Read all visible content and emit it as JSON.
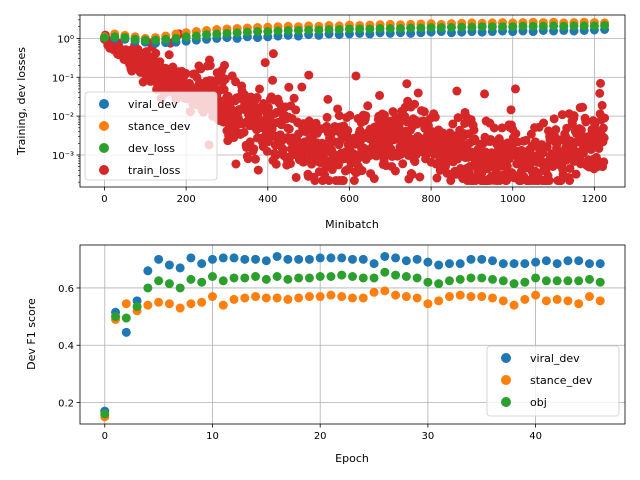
{
  "chart_data": [
    {
      "type": "scatter",
      "xlabel": "Minibatch",
      "ylabel": "Training, dev losses",
      "xlim": [
        -60,
        1275
      ],
      "yscale": "log",
      "ylim": [
        0.00015,
        4.0
      ],
      "x_ticks": [
        0,
        200,
        400,
        600,
        800,
        1000,
        1200
      ],
      "y_ticks": [
        {
          "value": 0.001,
          "label": "10⁻³"
        },
        {
          "value": 0.01,
          "label": "10⁻²"
        },
        {
          "value": 0.1,
          "label": "10⁻¹"
        },
        {
          "value": 1,
          "label": "10⁰"
        }
      ],
      "grid": true,
      "legend": "lower-left",
      "series": [
        {
          "name": "viral_dev",
          "color": "#1f77b4",
          "x": [
            0,
            25,
            50,
            75,
            100,
            125,
            150,
            175,
            200,
            225,
            250,
            275,
            300,
            325,
            350,
            375,
            400,
            425,
            450,
            475,
            500,
            525,
            550,
            575,
            600,
            625,
            650,
            675,
            700,
            725,
            750,
            775,
            800,
            825,
            850,
            875,
            900,
            925,
            950,
            975,
            1000,
            1025,
            1050,
            1075,
            1100,
            1125,
            1150,
            1175,
            1200,
            1225
          ],
          "y": [
            1.05,
            1.0,
            0.95,
            0.85,
            0.8,
            0.75,
            0.78,
            0.8,
            0.85,
            0.9,
            0.95,
            1.0,
            1.05,
            1.0,
            1.1,
            1.05,
            1.1,
            1.15,
            1.2,
            1.15,
            1.25,
            1.2,
            1.3,
            1.25,
            1.3,
            1.35,
            1.3,
            1.4,
            1.35,
            1.4,
            1.35,
            1.4,
            1.45,
            1.5,
            1.4,
            1.45,
            1.5,
            1.45,
            1.5,
            1.55,
            1.5,
            1.55,
            1.5,
            1.6,
            1.55,
            1.6,
            1.55,
            1.6,
            1.65,
            1.7
          ]
        },
        {
          "name": "stance_dev",
          "color": "#ff7f0e",
          "x": [
            0,
            25,
            50,
            75,
            100,
            125,
            150,
            175,
            200,
            225,
            250,
            275,
            300,
            325,
            350,
            375,
            400,
            425,
            450,
            475,
            500,
            525,
            550,
            575,
            600,
            625,
            650,
            675,
            700,
            725,
            750,
            775,
            800,
            825,
            850,
            875,
            900,
            925,
            950,
            975,
            1000,
            1025,
            1050,
            1075,
            1100,
            1125,
            1150,
            1175,
            1200,
            1225
          ],
          "y": [
            1.1,
            1.3,
            1.2,
            1.1,
            1.0,
            1.05,
            1.15,
            1.3,
            1.4,
            1.5,
            1.6,
            1.7,
            1.75,
            1.8,
            1.85,
            1.9,
            1.95,
            2.0,
            2.05,
            2.0,
            2.1,
            2.05,
            2.15,
            2.1,
            2.2,
            2.15,
            2.2,
            2.25,
            2.3,
            2.25,
            2.3,
            2.35,
            2.4,
            2.3,
            2.4,
            2.45,
            2.5,
            2.45,
            2.5,
            2.55,
            2.5,
            2.55,
            2.6,
            2.55,
            2.6,
            2.5,
            2.55,
            2.6,
            2.55,
            2.5
          ]
        },
        {
          "name": "dev_loss",
          "color": "#2ca02c",
          "x": [
            0,
            25,
            50,
            75,
            100,
            125,
            150,
            175,
            200,
            225,
            250,
            275,
            300,
            325,
            350,
            375,
            400,
            425,
            450,
            475,
            500,
            525,
            550,
            575,
            600,
            625,
            650,
            675,
            700,
            725,
            750,
            775,
            800,
            825,
            850,
            875,
            900,
            925,
            950,
            975,
            1000,
            1025,
            1050,
            1075,
            1100,
            1125,
            1150,
            1175,
            1200,
            1225
          ],
          "y": [
            1.05,
            1.1,
            1.05,
            0.95,
            0.9,
            0.9,
            0.95,
            1.0,
            1.1,
            1.15,
            1.25,
            1.3,
            1.35,
            1.4,
            1.45,
            1.5,
            1.5,
            1.55,
            1.6,
            1.6,
            1.65,
            1.65,
            1.7,
            1.7,
            1.75,
            1.75,
            1.75,
            1.8,
            1.8,
            1.8,
            1.85,
            1.85,
            1.9,
            1.9,
            1.9,
            1.95,
            1.95,
            2.0,
            2.0,
            2.0,
            2.0,
            2.05,
            2.05,
            2.05,
            2.1,
            2.05,
            2.1,
            2.1,
            2.1,
            2.15
          ]
        },
        {
          "name": "train_loss",
          "color": "#d62728",
          "generated": true,
          "x_range": [
            0,
            1225
          ],
          "count": 1230,
          "note_points": "dense cloud descending from 1.0 to ~1e-3 by minibatch 500, then scattered 3e-4 to 6e-2 through 1225"
        }
      ]
    },
    {
      "type": "scatter",
      "xlabel": "Epoch",
      "ylabel": "Dev F1 score",
      "xlim": [
        -2.3,
        48.3
      ],
      "ylim": [
        0.125,
        0.75
      ],
      "x_ticks": [
        0,
        10,
        20,
        30,
        40
      ],
      "y_ticks": [
        0.2,
        0.4,
        0.6
      ],
      "grid": true,
      "legend": "lower-right",
      "x": [
        0,
        1,
        2,
        3,
        4,
        5,
        6,
        7,
        8,
        9,
        10,
        11,
        12,
        13,
        14,
        15,
        16,
        17,
        18,
        19,
        20,
        21,
        22,
        23,
        24,
        25,
        26,
        27,
        28,
        29,
        30,
        31,
        32,
        33,
        34,
        35,
        36,
        37,
        38,
        39,
        40,
        41,
        42,
        43,
        44,
        45,
        46
      ],
      "series": [
        {
          "name": "viral_dev",
          "color": "#1f77b4",
          "values": [
            0.17,
            0.515,
            0.445,
            0.555,
            0.66,
            0.7,
            0.68,
            0.67,
            0.705,
            0.685,
            0.7,
            0.705,
            0.705,
            0.7,
            0.7,
            0.695,
            0.71,
            0.7,
            0.7,
            0.7,
            0.705,
            0.705,
            0.705,
            0.7,
            0.7,
            0.685,
            0.71,
            0.705,
            0.695,
            0.7,
            0.69,
            0.68,
            0.685,
            0.685,
            0.7,
            0.7,
            0.695,
            0.685,
            0.685,
            0.685,
            0.69,
            0.695,
            0.685,
            0.695,
            0.695,
            0.685,
            0.685
          ]
        },
        {
          "name": "stance_dev",
          "color": "#ff7f0e",
          "values": [
            0.15,
            0.49,
            0.545,
            0.52,
            0.54,
            0.55,
            0.545,
            0.53,
            0.545,
            0.55,
            0.57,
            0.54,
            0.56,
            0.565,
            0.57,
            0.565,
            0.565,
            0.56,
            0.565,
            0.57,
            0.57,
            0.575,
            0.57,
            0.565,
            0.565,
            0.585,
            0.59,
            0.575,
            0.57,
            0.565,
            0.545,
            0.555,
            0.57,
            0.575,
            0.57,
            0.57,
            0.565,
            0.555,
            0.54,
            0.56,
            0.575,
            0.555,
            0.56,
            0.555,
            0.545,
            0.57,
            0.555
          ]
        },
        {
          "name": "obj",
          "color": "#2ca02c",
          "values": [
            0.16,
            0.5,
            0.495,
            0.535,
            0.6,
            0.625,
            0.615,
            0.6,
            0.63,
            0.62,
            0.64,
            0.625,
            0.635,
            0.635,
            0.64,
            0.63,
            0.64,
            0.63,
            0.635,
            0.635,
            0.64,
            0.64,
            0.645,
            0.64,
            0.635,
            0.635,
            0.655,
            0.645,
            0.64,
            0.635,
            0.62,
            0.615,
            0.625,
            0.63,
            0.635,
            0.635,
            0.63,
            0.625,
            0.615,
            0.62,
            0.635,
            0.625,
            0.625,
            0.625,
            0.625,
            0.63,
            0.62
          ]
        }
      ]
    }
  ]
}
